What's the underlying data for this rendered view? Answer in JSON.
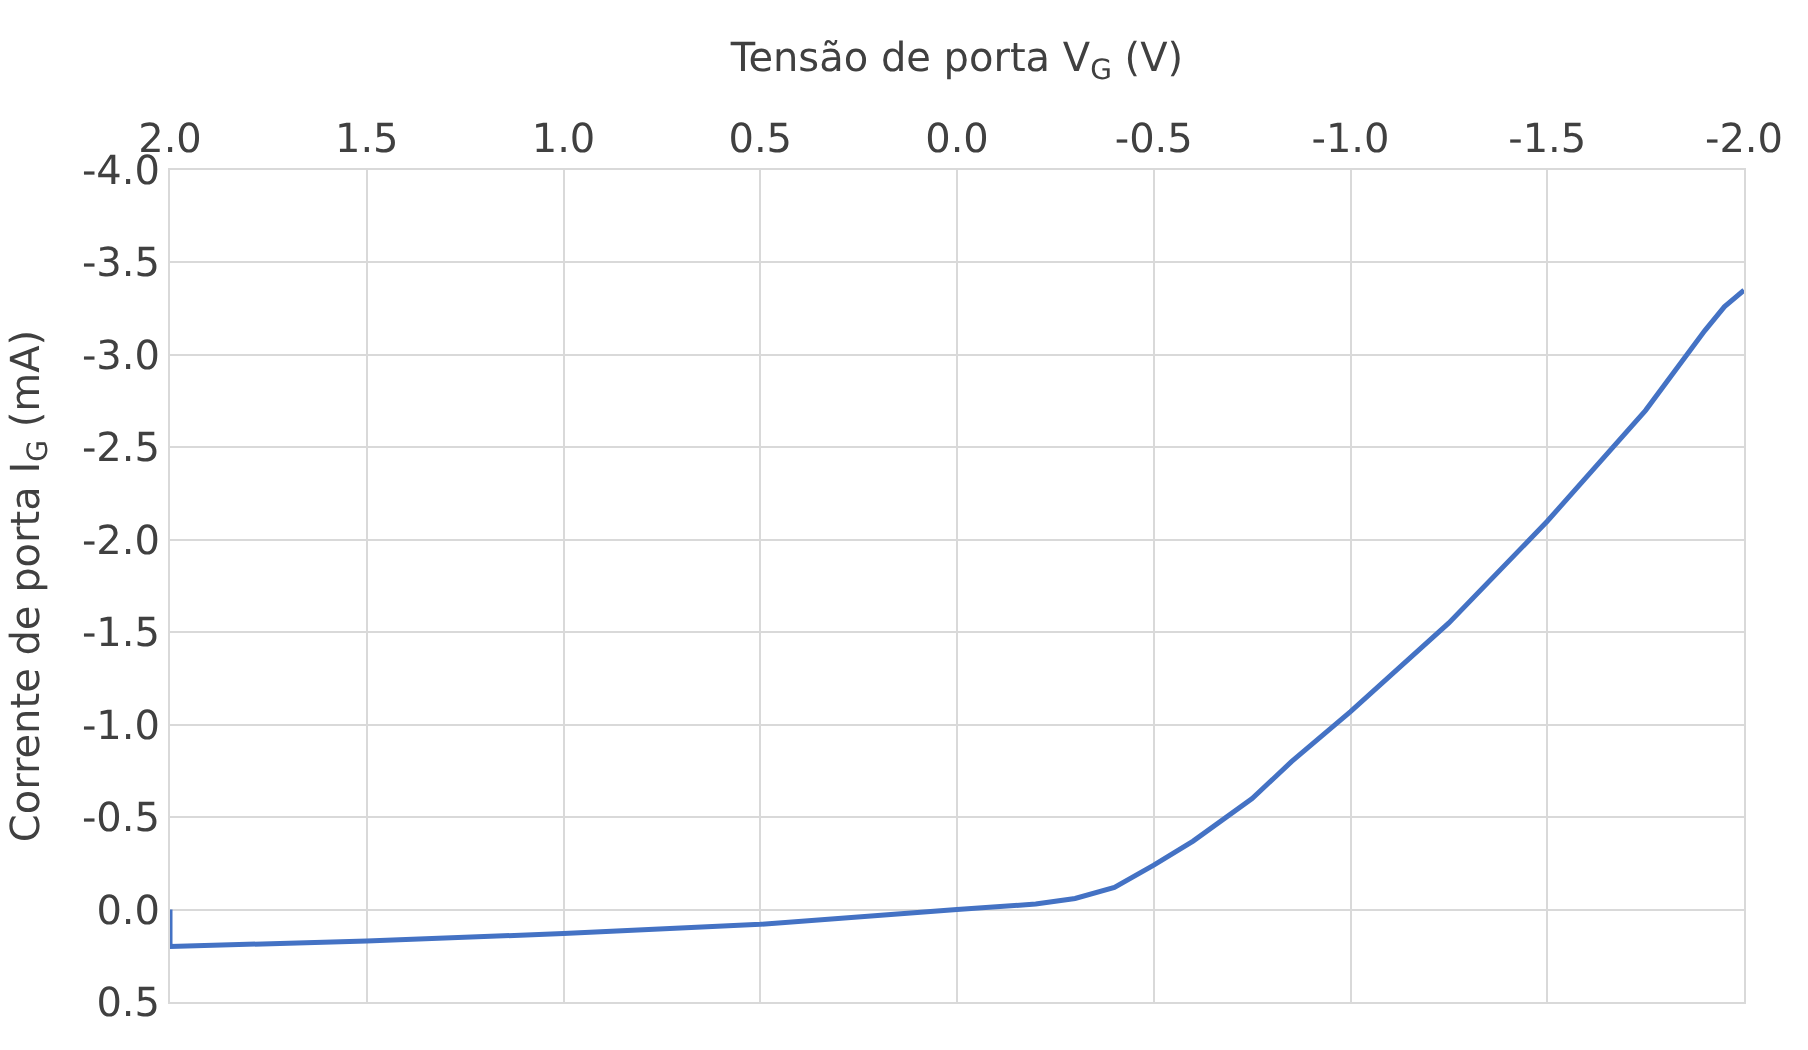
{
  "chart_data": {
    "type": "line",
    "xlabel": "Tensão de porta V$_{G}$ (V)",
    "ylabel": "Corrente de porta I$_{G}$ (mA)",
    "x": [
      2.0,
      2.0,
      1.5,
      1.0,
      0.5,
      0.0,
      -0.2,
      -0.3,
      -0.4,
      -0.5,
      -0.6,
      -0.75,
      -0.85,
      -1.0,
      -1.25,
      -1.5,
      -1.75,
      -1.9,
      -1.95,
      -2.0
    ],
    "series": [
      {
        "color": "#4472c4",
        "values": [
          0.0,
          0.2,
          0.17,
          0.13,
          0.08,
          0.0,
          -0.03,
          -0.06,
          -0.12,
          -0.24,
          -0.37,
          -0.6,
          -0.8,
          -1.07,
          -1.55,
          -2.1,
          -2.7,
          -3.13,
          -3.26,
          -3.35
        ]
      }
    ],
    "xlim": [
      2.0,
      -2.0
    ],
    "xticks": [
      {
        "value": 2.0,
        "label": "2.0"
      },
      {
        "value": 1.5,
        "label": "1.5"
      },
      {
        "value": 1.0,
        "label": "1.0"
      },
      {
        "value": 0.5,
        "label": "0.5"
      },
      {
        "value": 0.0,
        "label": "0.0"
      },
      {
        "value": -0.5,
        "label": "-0.5"
      },
      {
        "value": -1.0,
        "label": "-1.0"
      },
      {
        "value": -1.5,
        "label": "-1.5"
      },
      {
        "value": -2.0,
        "label": "-2.0"
      }
    ],
    "ylim": [
      0.5,
      -4.0
    ],
    "yticks": [
      {
        "value": 0.5,
        "label": "0.5"
      },
      {
        "value": 0.0,
        "label": "0.0"
      },
      {
        "value": -0.5,
        "label": "-0.5"
      },
      {
        "value": -1.0,
        "label": "-1.0"
      },
      {
        "value": -1.5,
        "label": "-1.5"
      },
      {
        "value": -2.0,
        "label": "-2.0"
      },
      {
        "value": -2.5,
        "label": "-2.5"
      },
      {
        "value": -3.0,
        "label": "-3.0"
      },
      {
        "value": -3.5,
        "label": "-3.5"
      },
      {
        "value": -4.0,
        "label": "-4.0"
      }
    ],
    "grid": true,
    "marker": "none",
    "line_style": "solid"
  }
}
